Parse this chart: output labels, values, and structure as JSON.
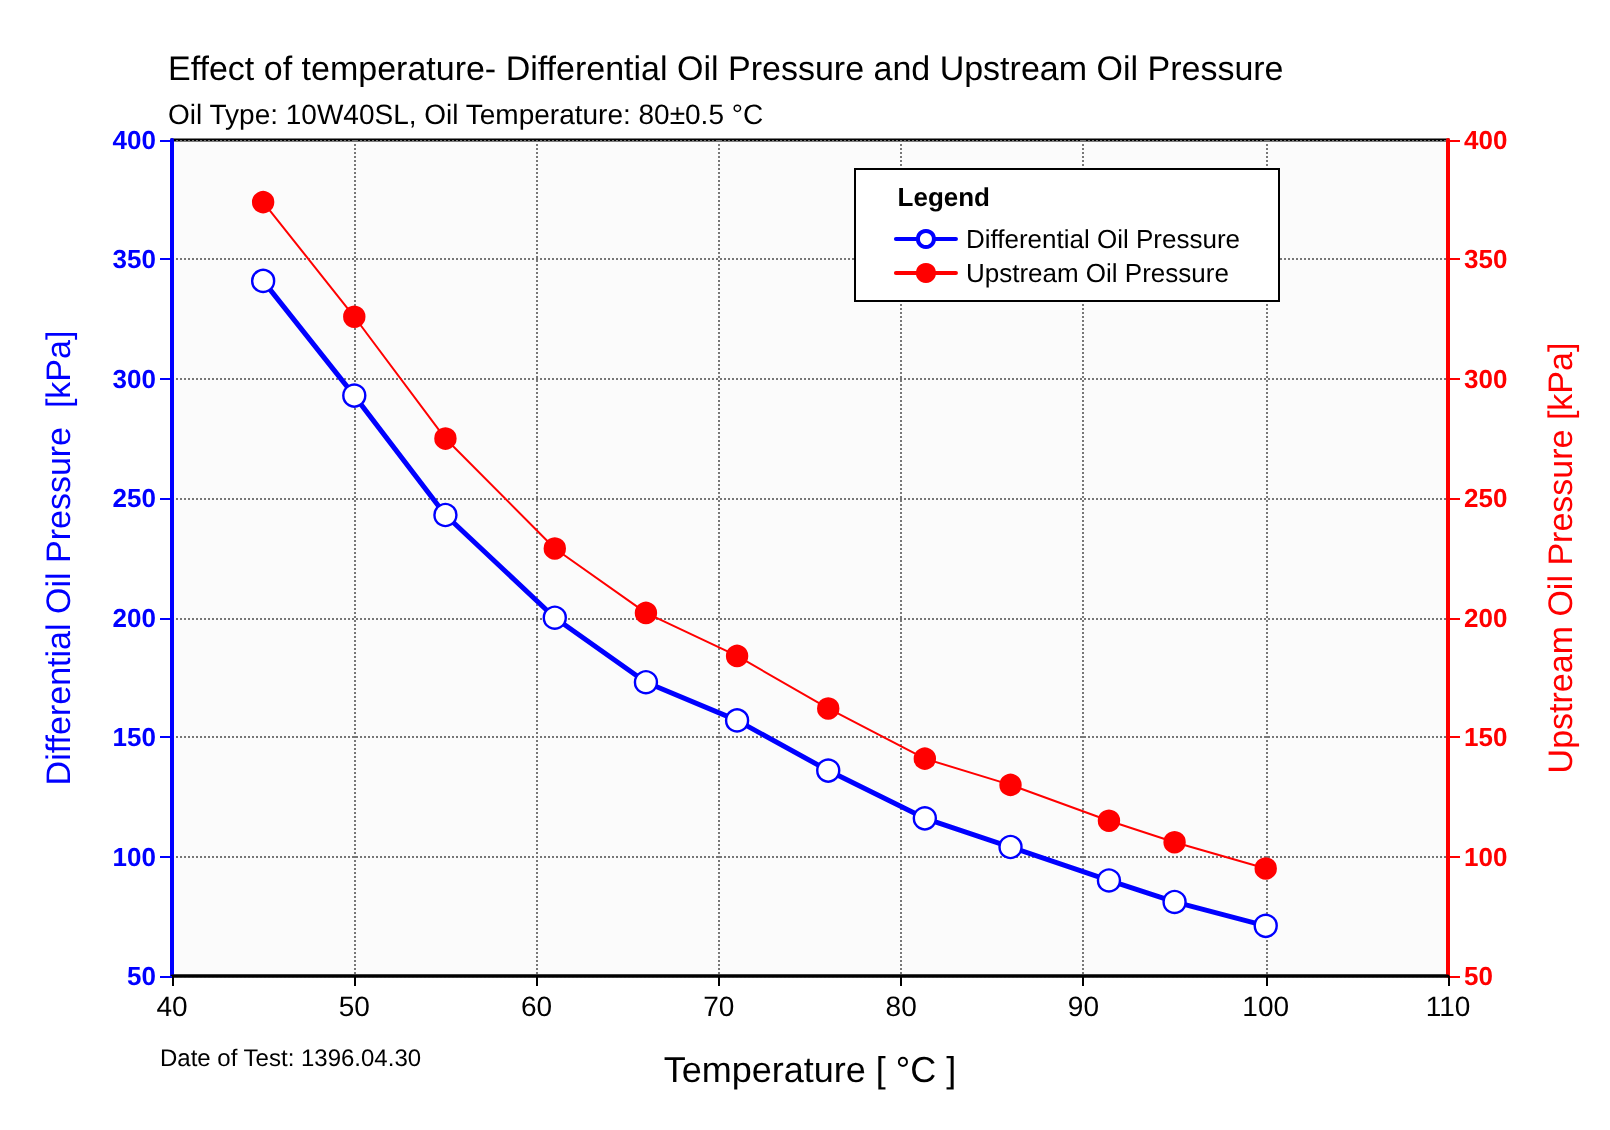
{
  "chart_data": {
    "type": "line",
    "title": "Effect of temperature- Differential Oil Pressure and Upstream Oil Pressure",
    "subtitle": "Oil Type: 10W40SL, Oil Temperature: 80±0.5 °C",
    "xlabel": "Temperature [ °C ]",
    "ylabel": "Differential Oil Pressure  [kPa]",
    "y2label": "Upstream Oil Pressure [kPa]",
    "legend_title": "Legend",
    "annotations": [
      "Date of Test: 1396.04.30"
    ],
    "x": [
      45,
      50,
      55,
      61,
      66,
      71,
      76,
      81.3,
      86,
      91.4,
      95,
      100
    ],
    "series": [
      {
        "name": "Differential Oil Pressure",
        "color": "#0000ff",
        "values": [
          341,
          293,
          243,
          200,
          173,
          157,
          136,
          116,
          104,
          90,
          81,
          71
        ]
      },
      {
        "name": "Upstream Oil Pressure",
        "color": "#ff0000",
        "axis": "y2",
        "values": [
          374,
          326,
          275,
          229,
          202,
          184,
          162,
          141,
          130,
          115,
          106,
          95
        ]
      }
    ],
    "xlim": [
      40,
      110
    ],
    "xticks": [
      40,
      50,
      60,
      70,
      80,
      90,
      100,
      110
    ],
    "ylim": [
      50,
      400
    ],
    "yticks": [
      50,
      100,
      150,
      200,
      250,
      300,
      350,
      400
    ],
    "y2lim": [
      50,
      400
    ],
    "y2ticks": [
      50,
      100,
      150,
      200,
      250,
      300,
      350,
      400
    ],
    "grid": true,
    "legend": "top right",
    "marker": "circle",
    "line_style": "solid"
  }
}
